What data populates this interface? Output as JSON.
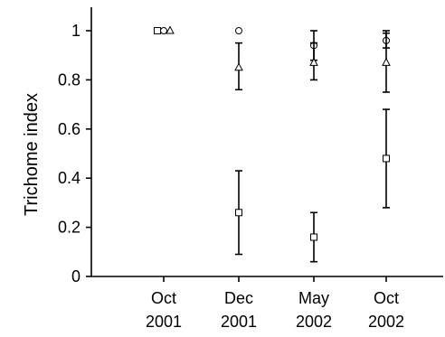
{
  "chart_data": {
    "type": "scatter",
    "ylabel": "Trichome index",
    "xlabel": "",
    "ylim": [
      0,
      1.05
    ],
    "yticks": [
      0,
      0.2,
      0.4,
      0.6,
      0.8,
      1
    ],
    "ytick_labels": [
      "0",
      "0.2",
      "0.4",
      "0.6",
      "0.8",
      "1"
    ],
    "categories": [
      {
        "line1": "Oct",
        "line2": "2001"
      },
      {
        "line1": "Dec",
        "line2": "2001"
      },
      {
        "line1": "May",
        "line2": "2002"
      },
      {
        "line1": "Oct",
        "line2": "2002"
      }
    ],
    "grid": false,
    "series": [
      {
        "marker": "square",
        "values": [
          1.0,
          0.26,
          0.16,
          0.48
        ],
        "err_low": [
          1.0,
          0.09,
          0.06,
          0.28
        ],
        "err_high": [
          1.0,
          0.43,
          0.26,
          0.68
        ]
      },
      {
        "marker": "circle",
        "values": [
          1.0,
          1.0,
          0.94,
          0.96
        ],
        "err_low": [
          1.0,
          1.0,
          0.88,
          0.93
        ],
        "err_high": [
          1.0,
          1.0,
          1.0,
          0.99
        ]
      },
      {
        "marker": "triangle",
        "values": [
          1.0,
          0.85,
          0.87,
          0.87
        ],
        "err_low": [
          1.0,
          0.76,
          0.8,
          0.75
        ],
        "err_high": [
          1.0,
          0.95,
          0.95,
          1.0
        ]
      }
    ]
  }
}
